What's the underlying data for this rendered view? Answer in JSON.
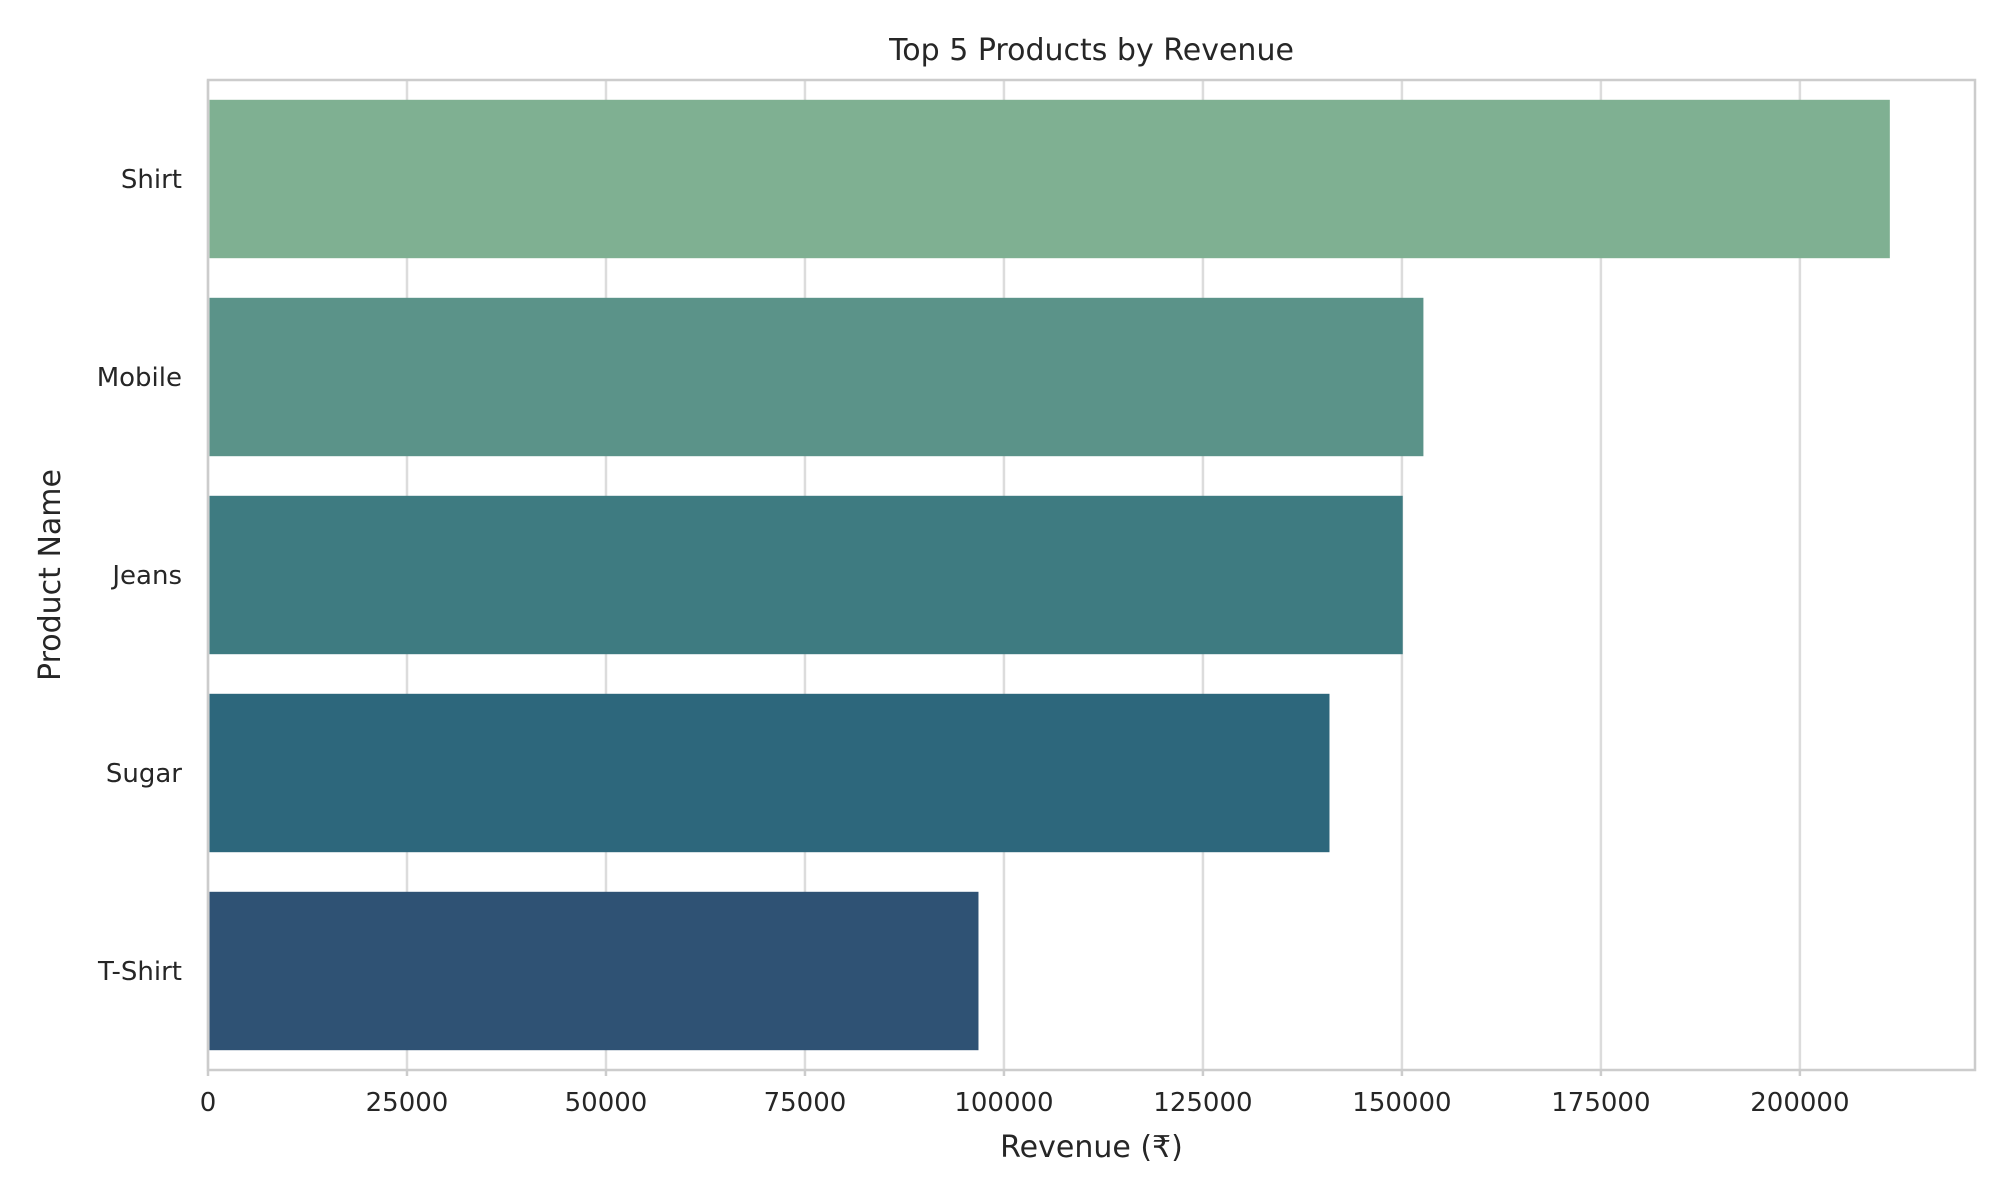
{
  "chart_data": {
    "type": "bar",
    "orientation": "horizontal",
    "title": "Top 5 Products by Revenue",
    "xlabel": "Revenue (₹)",
    "ylabel": "Product Name",
    "categories": [
      "Shirt",
      "Mobile",
      "Jeans",
      "Sugar",
      "T-Shirt"
    ],
    "values": [
      211300,
      152700,
      150100,
      140900,
      96800
    ],
    "xlim": [
      0,
      222000
    ],
    "xticks": [
      0,
      25000,
      50000,
      75000,
      100000,
      125000,
      150000,
      175000,
      200000
    ],
    "xtick_labels": [
      "0",
      "25000",
      "50000",
      "75000",
      "100000",
      "125000",
      "150000",
      "175000",
      "200000"
    ],
    "colors": [
      "#7fb092",
      "#5b9389",
      "#3e7b81",
      "#2d677c",
      "#2f5274"
    ],
    "grid": "vertical",
    "legend": "none"
  }
}
